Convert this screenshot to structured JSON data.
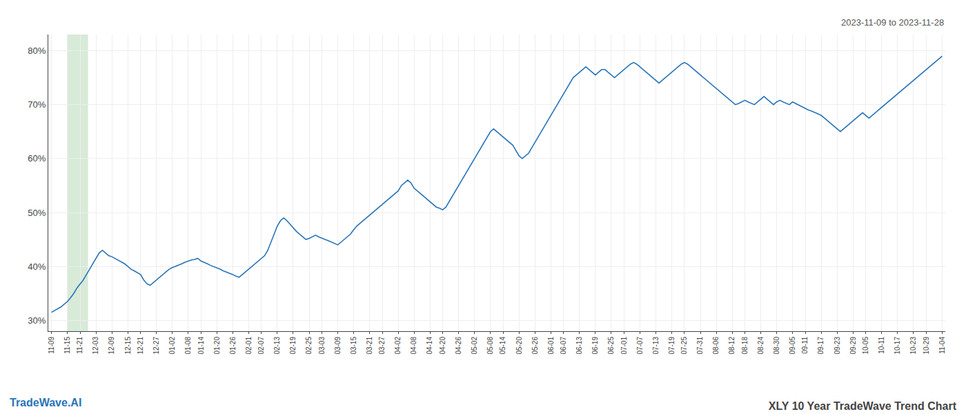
{
  "chart_data": {
    "type": "line",
    "title": "XLY 10 Year TradeWave Trend Chart",
    "subtitle": "2023-11-09 to 2023-11-28",
    "annotations": [
      "TradeWave.AI"
    ],
    "color": "#2874b8",
    "grid": true,
    "highlight": {
      "from": "11-15",
      "to": "11-21",
      "color": "#d8ead8"
    },
    "ylim": [
      28,
      83
    ],
    "yticks": [
      {
        "value": 30,
        "label": "30%"
      },
      {
        "value": 40,
        "label": "40%"
      },
      {
        "value": 50,
        "label": "50%"
      },
      {
        "value": 60,
        "label": "60%"
      },
      {
        "value": 70,
        "label": "70%"
      },
      {
        "value": 80,
        "label": "80%"
      }
    ],
    "categories": [
      "11-09",
      null,
      null,
      null,
      null,
      "11-15",
      null,
      null,
      null,
      "11-21",
      null,
      null,
      null,
      null,
      "12-03",
      null,
      null,
      null,
      null,
      "12-09",
      null,
      null,
      null,
      null,
      "12-15",
      null,
      null,
      null,
      "12-21",
      null,
      null,
      null,
      null,
      "12-27",
      null,
      null,
      null,
      null,
      "01-02",
      null,
      null,
      null,
      null,
      "01-08",
      null,
      null,
      null,
      "01-14",
      null,
      null,
      null,
      null,
      "01-20",
      null,
      null,
      null,
      null,
      "01-26",
      null,
      null,
      null,
      null,
      "02-01",
      null,
      null,
      null,
      "02-07",
      null,
      null,
      null,
      null,
      "02-13",
      null,
      null,
      null,
      null,
      "02-19",
      null,
      null,
      null,
      null,
      "02-25",
      null,
      null,
      null,
      "03-03",
      null,
      null,
      null,
      null,
      "03-09",
      null,
      null,
      null,
      null,
      "03-15",
      null,
      null,
      null,
      null,
      "03-21",
      null,
      null,
      null,
      "03-27",
      null,
      null,
      null,
      null,
      "04-02",
      null,
      null,
      null,
      null,
      "04-08",
      null,
      null,
      null,
      null,
      "04-14",
      null,
      null,
      null,
      "04-20",
      null,
      null,
      null,
      null,
      "04-26",
      null,
      null,
      null,
      null,
      "05-02",
      null,
      null,
      null,
      null,
      "05-08",
      null,
      null,
      null,
      "05-14",
      null,
      null,
      null,
      null,
      "05-20",
      null,
      null,
      null,
      null,
      "05-26",
      null,
      null,
      null,
      null,
      "06-01",
      null,
      null,
      null,
      "06-07",
      null,
      null,
      null,
      null,
      "06-13",
      null,
      null,
      null,
      null,
      "06-19",
      null,
      null,
      null,
      null,
      "06-25",
      null,
      null,
      null,
      "07-01",
      null,
      null,
      null,
      null,
      "07-07",
      null,
      null,
      null,
      null,
      "07-13",
      null,
      null,
      null,
      null,
      "07-19",
      null,
      null,
      null,
      "07-25",
      null,
      null,
      null,
      null,
      "07-31",
      null,
      null,
      null,
      null,
      "08-06",
      null,
      null,
      null,
      null,
      "08-12",
      null,
      null,
      null,
      "08-18",
      null,
      null,
      null,
      null,
      "08-24",
      null,
      null,
      null,
      null,
      "08-30",
      null,
      null,
      null,
      null,
      "09-05",
      null,
      null,
      null,
      "09-11",
      null,
      null,
      null,
      null,
      "09-17",
      null,
      null,
      null,
      null,
      "09-23",
      null,
      null,
      null,
      null,
      "09-29",
      null,
      null,
      null,
      "10-05",
      null,
      null,
      null,
      null,
      "10-11",
      null,
      null,
      null,
      null,
      "10-17",
      null,
      null,
      null,
      null,
      "10-23",
      null,
      null,
      null,
      "10-29",
      null,
      null,
      null,
      null,
      "11-04"
    ],
    "values": [
      31.5,
      31.8,
      32.1,
      32.5,
      33.0,
      33.5,
      34.2,
      35.0,
      36.0,
      36.8,
      37.5,
      38.5,
      39.5,
      40.5,
      41.5,
      42.5,
      43.0,
      42.5,
      42.0,
      41.8,
      41.5,
      41.2,
      40.8,
      40.5,
      40.0,
      39.5,
      39.2,
      38.8,
      38.5,
      37.5,
      36.8,
      36.5,
      37.0,
      37.5,
      38.0,
      38.5,
      39.0,
      39.5,
      39.8,
      40.0,
      40.2,
      40.5,
      40.8,
      41.0,
      41.2,
      41.3,
      41.5,
      41.0,
      40.8,
      40.5,
      40.2,
      40.0,
      39.8,
      39.5,
      39.2,
      39.0,
      38.8,
      38.5,
      38.2,
      38.0,
      38.5,
      39.0,
      39.5,
      40.0,
      40.5,
      41.0,
      41.5,
      42.0,
      43.0,
      44.5,
      46.0,
      47.5,
      48.5,
      49.0,
      48.5,
      47.8,
      47.2,
      46.5,
      46.0,
      45.5,
      45.0,
      45.2,
      45.5,
      45.8,
      45.5,
      45.2,
      45.0,
      44.8,
      44.5,
      44.2,
      44.0,
      44.5,
      45.0,
      45.5,
      46.0,
      46.8,
      47.5,
      48.0,
      48.5,
      49.0,
      49.5,
      50.0,
      50.5,
      51.0,
      51.5,
      52.0,
      52.5,
      53.0,
      53.5,
      54.0,
      55.0,
      55.5,
      56.0,
      55.5,
      54.5,
      54.0,
      53.5,
      53.0,
      52.5,
      52.0,
      51.5,
      51.0,
      50.8,
      50.5,
      51.0,
      52.0,
      53.0,
      54.0,
      55.0,
      56.0,
      57.0,
      58.0,
      59.0,
      60.0,
      61.0,
      62.0,
      63.0,
      64.0,
      65.0,
      65.5,
      65.0,
      64.5,
      64.0,
      63.5,
      63.0,
      62.5,
      61.5,
      60.5,
      60.0,
      60.5,
      61.0,
      62.0,
      63.0,
      64.0,
      65.0,
      66.0,
      67.0,
      68.0,
      69.0,
      70.0,
      71.0,
      72.0,
      73.0,
      74.0,
      75.0,
      75.5,
      76.0,
      76.5,
      77.0,
      76.5,
      76.0,
      75.5,
      76.0,
      76.5,
      76.5,
      76.0,
      75.5,
      75.0,
      75.5,
      76.0,
      76.5,
      77.0,
      77.5,
      77.8,
      77.5,
      77.0,
      76.5,
      76.0,
      75.5,
      75.0,
      74.5,
      74.0,
      74.5,
      75.0,
      75.5,
      76.0,
      76.5,
      77.0,
      77.5,
      77.8,
      77.5,
      77.0,
      76.5,
      76.0,
      75.5,
      75.0,
      74.5,
      74.0,
      73.5,
      73.0,
      72.5,
      72.0,
      71.5,
      71.0,
      70.5,
      70.0,
      70.2,
      70.5,
      70.8,
      70.5,
      70.2,
      70.0,
      70.5,
      71.0,
      71.5,
      71.0,
      70.5,
      70.0,
      70.5,
      70.8,
      70.5,
      70.2,
      70.0,
      70.5,
      70.2,
      69.8,
      69.5,
      69.2,
      69.0,
      68.8,
      68.5,
      68.2,
      68.0,
      67.5,
      67.0,
      66.5,
      66.0,
      65.5,
      65.0,
      65.5,
      66.0,
      66.5,
      67.0,
      67.5,
      68.0,
      68.5,
      68.0,
      67.5,
      68.0,
      68.5,
      69.0,
      69.5,
      70.0,
      70.5,
      71.0,
      71.5,
      72.0,
      72.5,
      73.0,
      73.5,
      74.0,
      74.5,
      75.0,
      75.5,
      76.0,
      76.5,
      77.0,
      77.5,
      78.0,
      78.5,
      79.0
    ]
  }
}
